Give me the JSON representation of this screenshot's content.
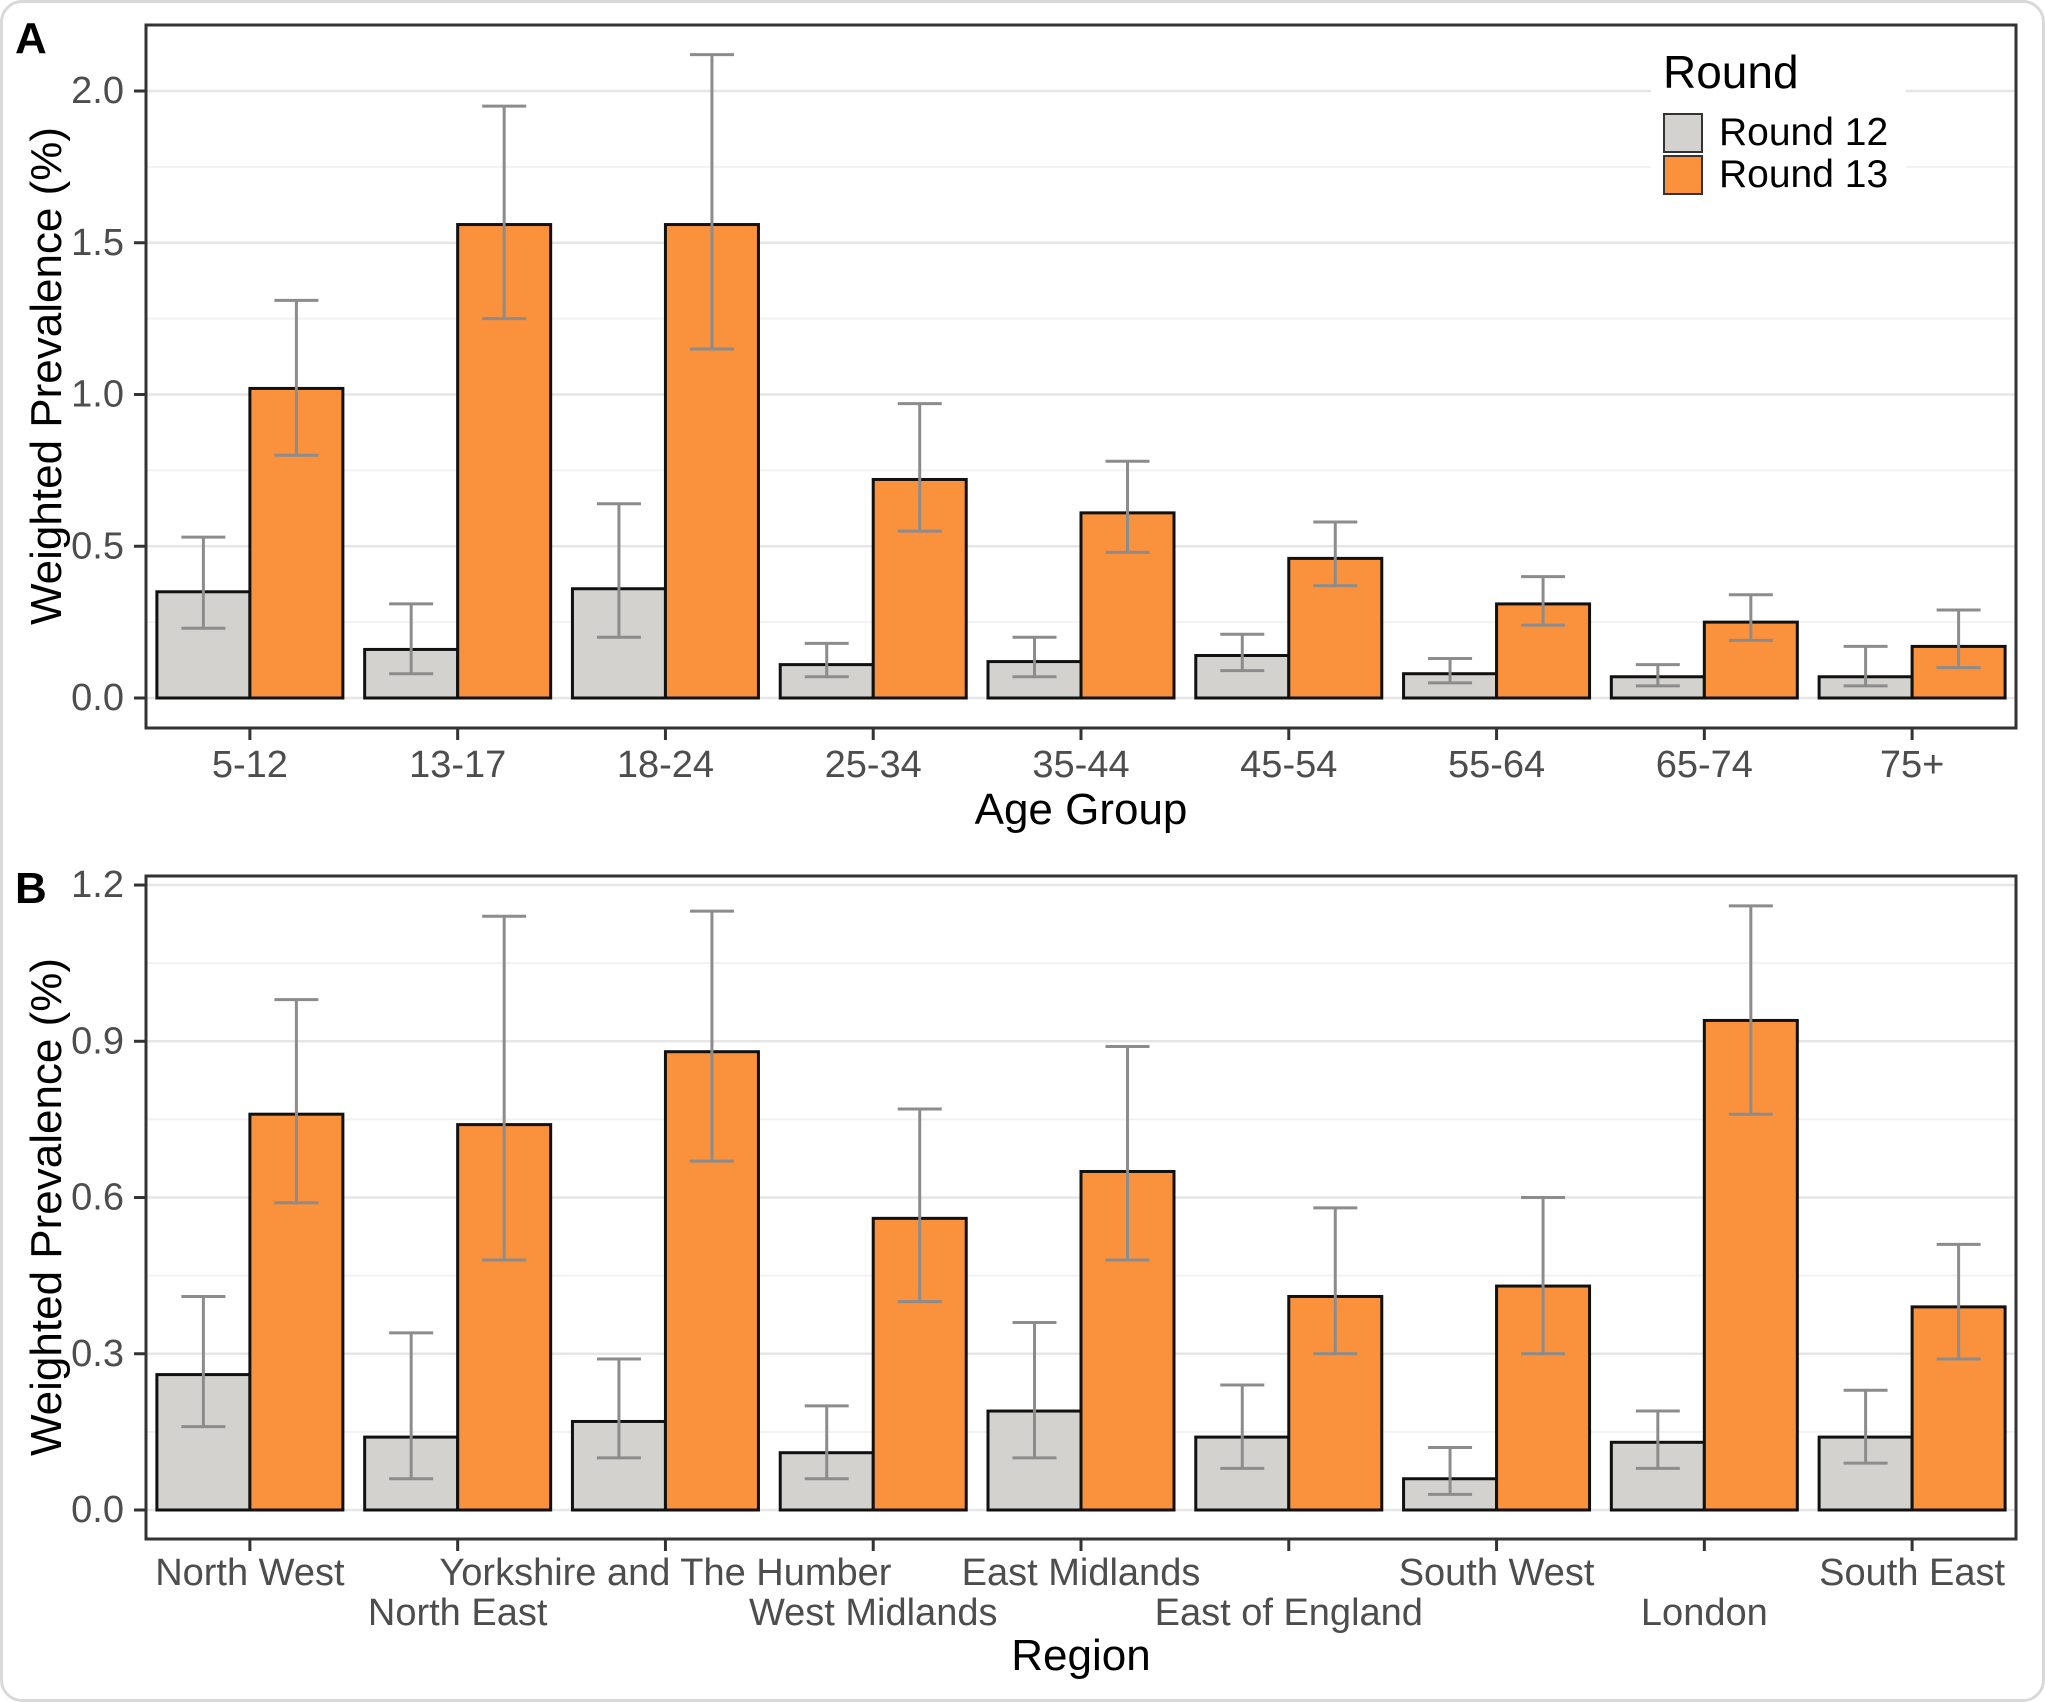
{
  "legend": {
    "title": "Round",
    "items": [
      {
        "label": "Round 12",
        "color": "#D3D2CE"
      },
      {
        "label": "Round 13",
        "color": "#F9913D"
      }
    ]
  },
  "colors": {
    "round12_fill": "#D3D2CE",
    "round13_fill": "#F9913D",
    "bar_outline": "#111111",
    "error_bar": "#8C8C8C",
    "panel_border": "#333333",
    "major_gridline": "#E6E6E6",
    "minor_gridline": "#F2F2F2",
    "tick_text": "#4D4D4D",
    "plot_background": "#FFFFFF"
  },
  "chart_data": [
    {
      "panel_label": "A",
      "type": "bar",
      "title": "",
      "xlabel": "Age Group",
      "ylabel": "Weighted Prevalence (%)",
      "categories": [
        "5-12",
        "13-17",
        "18-24",
        "25-34",
        "35-44",
        "45-54",
        "55-64",
        "65-74",
        "75+"
      ],
      "series": [
        {
          "name": "Round 12",
          "color": "#D3D2CE",
          "values": [
            0.35,
            0.16,
            0.36,
            0.11,
            0.12,
            0.14,
            0.08,
            0.07,
            0.07
          ],
          "ci_low": [
            0.23,
            0.08,
            0.2,
            0.07,
            0.07,
            0.09,
            0.05,
            0.04,
            0.04
          ],
          "ci_high": [
            0.53,
            0.31,
            0.64,
            0.18,
            0.2,
            0.21,
            0.13,
            0.11,
            0.17
          ]
        },
        {
          "name": "Round 13",
          "color": "#F9913D",
          "values": [
            1.02,
            1.56,
            1.56,
            0.72,
            0.61,
            0.46,
            0.31,
            0.25,
            0.17
          ],
          "ci_low": [
            0.8,
            1.25,
            1.15,
            0.55,
            0.48,
            0.37,
            0.24,
            0.19,
            0.1
          ],
          "ci_high": [
            1.31,
            1.95,
            2.12,
            0.97,
            0.78,
            0.58,
            0.4,
            0.34,
            0.29
          ]
        }
      ],
      "ylim": [
        0,
        2.22
      ],
      "yticks": [
        0,
        0.5,
        1.0,
        1.5,
        2.0
      ],
      "ytick_labels": [
        "0.0",
        "0.5",
        "1.0",
        "1.5",
        "2.0"
      ],
      "minor_tick_step": 0.25,
      "grid": "major+minor horizontal",
      "legend_position": "top-right-inside",
      "label_rows": 1
    },
    {
      "panel_label": "B",
      "type": "bar",
      "title": "",
      "xlabel": "Region",
      "ylabel": "Weighted Prevalence (%)",
      "categories": [
        "North West",
        "North East",
        "Yorkshire and The Humber",
        "West Midlands",
        "East Midlands",
        "East of England",
        "South West",
        "London",
        "South East"
      ],
      "series": [
        {
          "name": "Round 12",
          "color": "#D3D2CE",
          "values": [
            0.26,
            0.14,
            0.17,
            0.11,
            0.19,
            0.14,
            0.06,
            0.13,
            0.14
          ],
          "ci_low": [
            0.16,
            0.06,
            0.1,
            0.06,
            0.1,
            0.08,
            0.03,
            0.08,
            0.09
          ],
          "ci_high": [
            0.41,
            0.34,
            0.29,
            0.2,
            0.36,
            0.24,
            0.12,
            0.19,
            0.23
          ]
        },
        {
          "name": "Round 13",
          "color": "#F9913D",
          "values": [
            0.76,
            0.74,
            0.88,
            0.56,
            0.65,
            0.41,
            0.43,
            0.94,
            0.39
          ],
          "ci_low": [
            0.59,
            0.48,
            0.67,
            0.4,
            0.48,
            0.3,
            0.3,
            0.76,
            0.29
          ],
          "ci_high": [
            0.98,
            1.14,
            1.15,
            0.77,
            0.89,
            0.58,
            0.6,
            1.16,
            0.51
          ]
        }
      ],
      "ylim": [
        0,
        1.22
      ],
      "yticks": [
        0,
        0.3,
        0.6,
        0.9,
        1.2
      ],
      "ytick_labels": [
        "0.0",
        "0.3",
        "0.6",
        "0.9",
        "1.2"
      ],
      "minor_tick_step": 0.15,
      "grid": "major+minor horizontal",
      "legend_position": "none",
      "label_rows": 2
    }
  ]
}
